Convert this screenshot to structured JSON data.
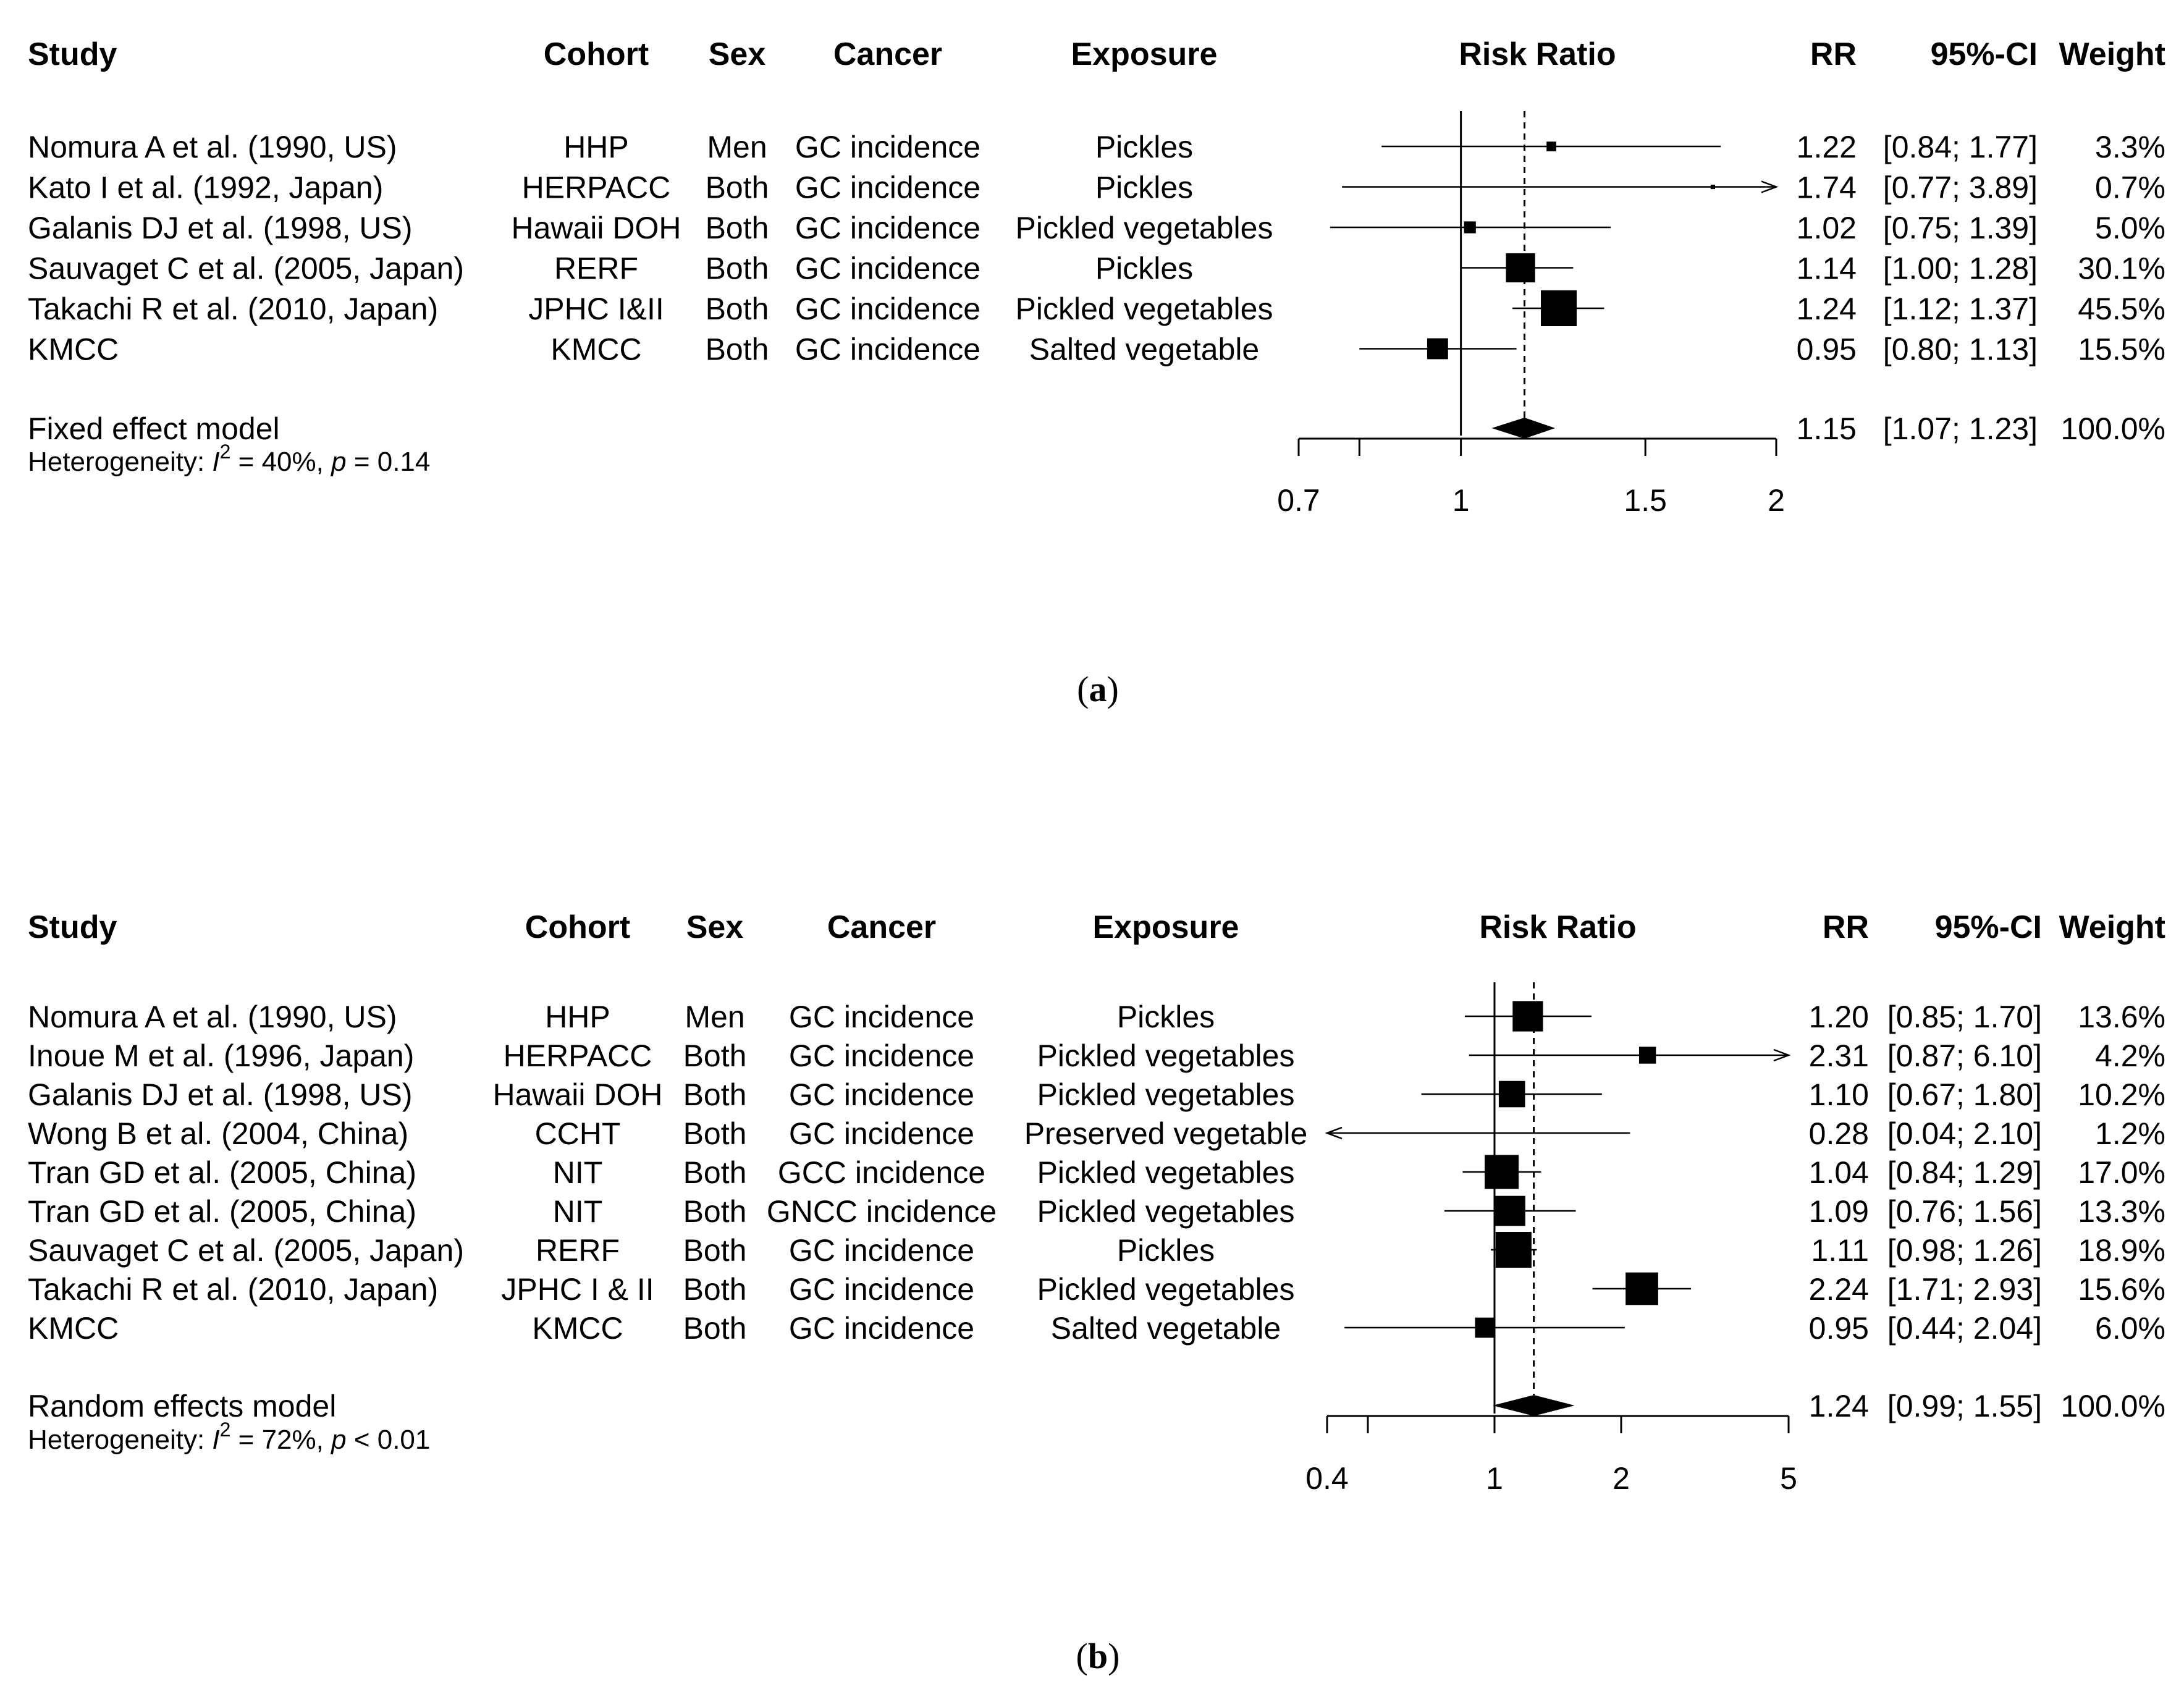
{
  "chart_data": [
    {
      "type": "forest",
      "panel_label": "a",
      "headers": {
        "study": "Study",
        "cohort": "Cohort",
        "sex": "Sex",
        "cancer": "Cancer",
        "exposure": "Exposure",
        "effect": "Risk Ratio",
        "rr": "RR",
        "ci": "95%-CI",
        "weight": "Weight"
      },
      "scale": "log",
      "xlim": [
        0.7,
        2
      ],
      "xticks": [
        0.7,
        0.8,
        1,
        1.5,
        2
      ],
      "xtick_labels": [
        "0.7",
        "",
        "1",
        "1.5",
        "2"
      ],
      "reference_line": 1,
      "studies": [
        {
          "study": "Nomura A et al. (1990, US)",
          "cohort": "HHP",
          "sex": "Men",
          "cancer": "GC incidence",
          "exposure": "Pickles",
          "rr": 1.22,
          "lower": 0.84,
          "upper": 1.77,
          "weight": 3.3,
          "rr_text": "1.22",
          "ci_text": "[0.84; 1.77]",
          "weight_text": "3.3%"
        },
        {
          "study": "Kato I et al. (1992, Japan)",
          "cohort": "HERPACC",
          "sex": "Both",
          "cancer": "GC incidence",
          "exposure": "Pickles",
          "rr": 1.74,
          "lower": 0.77,
          "upper": 3.89,
          "weight": 0.7,
          "rr_text": "1.74",
          "ci_text": "[0.77; 3.89]",
          "weight_text": "0.7%"
        },
        {
          "study": "Galanis DJ et al. (1998, US)",
          "cohort": "Hawaii DOH",
          "sex": "Both",
          "cancer": "GC incidence",
          "exposure": "Pickled vegetables",
          "rr": 1.02,
          "lower": 0.75,
          "upper": 1.39,
          "weight": 5.0,
          "rr_text": "1.02",
          "ci_text": "[0.75; 1.39]",
          "weight_text": "5.0%"
        },
        {
          "study": "Sauvaget C et al. (2005, Japan)",
          "cohort": "RERF",
          "sex": "Both",
          "cancer": "GC incidence",
          "exposure": "Pickles",
          "rr": 1.14,
          "lower": 1.0,
          "upper": 1.28,
          "weight": 30.1,
          "rr_text": "1.14",
          "ci_text": "[1.00; 1.28]",
          "weight_text": "30.1%"
        },
        {
          "study": "Takachi R et al. (2010, Japan)",
          "cohort": "JPHC I&II",
          "sex": "Both",
          "cancer": "GC incidence",
          "exposure": "Pickled vegetables",
          "rr": 1.24,
          "lower": 1.12,
          "upper": 1.37,
          "weight": 45.5,
          "rr_text": "1.24",
          "ci_text": "[1.12; 1.37]",
          "weight_text": "45.5%"
        },
        {
          "study": "KMCC",
          "cohort": "KMCC",
          "sex": "Both",
          "cancer": "GC incidence",
          "exposure": "Salted vegetable",
          "rr": 0.95,
          "lower": 0.8,
          "upper": 1.13,
          "weight": 15.5,
          "rr_text": "0.95",
          "ci_text": "[0.80; 1.13]",
          "weight_text": "15.5%"
        }
      ],
      "pooled": {
        "label": "Fixed effect model",
        "rr": 1.15,
        "lower": 1.07,
        "upper": 1.23,
        "rr_text": "1.15",
        "ci_text": "[1.07; 1.23]",
        "weight_text": "100.0%"
      },
      "heterogeneity": {
        "prefix": "Heterogeneity: ",
        "i_symbol": "I",
        "superscript": "2",
        "i2_text": " = 40%, ",
        "p_symbol": "p",
        "p_text": " = 0.14"
      }
    },
    {
      "type": "forest",
      "panel_label": "b",
      "headers": {
        "study": "Study",
        "cohort": "Cohort",
        "sex": "Sex",
        "cancer": "Cancer",
        "exposure": "Exposure",
        "effect": "Risk Ratio",
        "rr": "RR",
        "ci": "95%-CI",
        "weight": "Weight"
      },
      "scale": "log",
      "xlim": [
        0.4,
        5
      ],
      "xticks": [
        0.4,
        0.5,
        1,
        2,
        5
      ],
      "xtick_labels": [
        "0.4",
        "",
        "1",
        "2",
        "5"
      ],
      "reference_line": 1,
      "studies": [
        {
          "study": "Nomura A et al. (1990, US)",
          "cohort": "HHP",
          "sex": "Men",
          "cancer": "GC incidence",
          "exposure": "Pickles",
          "rr": 1.2,
          "lower": 0.85,
          "upper": 1.7,
          "weight": 13.6,
          "rr_text": "1.20",
          "ci_text": "[0.85; 1.70]",
          "weight_text": "13.6%"
        },
        {
          "study": "Inoue M et al. (1996, Japan)",
          "cohort": "HERPACC",
          "sex": "Both",
          "cancer": "GC incidence",
          "exposure": "Pickled vegetables",
          "rr": 2.31,
          "lower": 0.87,
          "upper": 6.1,
          "weight": 4.2,
          "rr_text": "2.31",
          "ci_text": "[0.87; 6.10]",
          "weight_text": "4.2%"
        },
        {
          "study": "Galanis DJ et al. (1998, US)",
          "cohort": "Hawaii DOH",
          "sex": "Both",
          "cancer": "GC incidence",
          "exposure": "Pickled vegetables",
          "rr": 1.1,
          "lower": 0.67,
          "upper": 1.8,
          "weight": 10.2,
          "rr_text": "1.10",
          "ci_text": "[0.67; 1.80]",
          "weight_text": "10.2%"
        },
        {
          "study": "Wong B et al. (2004, China)",
          "cohort": "CCHT",
          "sex": "Both",
          "cancer": "GC incidence",
          "exposure": "Preserved vegetable",
          "rr": 0.28,
          "lower": 0.04,
          "upper": 2.1,
          "weight": 1.2,
          "rr_text": "0.28",
          "ci_text": "[0.04; 2.10]",
          "weight_text": "1.2%"
        },
        {
          "study": "Tran GD et al. (2005, China)",
          "cohort": "NIT",
          "sex": "Both",
          "cancer": "GCC incidence",
          "exposure": "Pickled vegetables",
          "rr": 1.04,
          "lower": 0.84,
          "upper": 1.29,
          "weight": 17.0,
          "rr_text": "1.04",
          "ci_text": "[0.84; 1.29]",
          "weight_text": "17.0%"
        },
        {
          "study": "Tran GD et al. (2005, China)",
          "cohort": "NIT",
          "sex": "Both",
          "cancer": "GNCC incidence",
          "exposure": "Pickled vegetables",
          "rr": 1.09,
          "lower": 0.76,
          "upper": 1.56,
          "weight": 13.3,
          "rr_text": "1.09",
          "ci_text": "[0.76; 1.56]",
          "weight_text": "13.3%"
        },
        {
          "study": "Sauvaget C et al. (2005, Japan)",
          "cohort": "RERF",
          "sex": "Both",
          "cancer": "GC incidence",
          "exposure": "Pickles",
          "rr": 1.11,
          "lower": 0.98,
          "upper": 1.26,
          "weight": 18.9,
          "rr_text": "1.11",
          "ci_text": "[0.98; 1.26]",
          "weight_text": "18.9%"
        },
        {
          "study": "Takachi R et al. (2010, Japan)",
          "cohort": "JPHC I & II",
          "sex": "Both",
          "cancer": "GC incidence",
          "exposure": "Pickled vegetables",
          "rr": 2.24,
          "lower": 1.71,
          "upper": 2.93,
          "weight": 15.6,
          "rr_text": "2.24",
          "ci_text": "[1.71; 2.93]",
          "weight_text": "15.6%"
        },
        {
          "study": "KMCC",
          "cohort": "KMCC",
          "sex": "Both",
          "cancer": "GC incidence",
          "exposure": "Salted vegetable",
          "rr": 0.95,
          "lower": 0.44,
          "upper": 2.04,
          "weight": 6.0,
          "rr_text": "0.95",
          "ci_text": "[0.44; 2.04]",
          "weight_text": "6.0%"
        }
      ],
      "pooled": {
        "label": "Random effects model",
        "rr": 1.24,
        "lower": 0.99,
        "upper": 1.55,
        "rr_text": "1.24",
        "ci_text": "[0.99; 1.55]",
        "weight_text": "100.0%"
      },
      "heterogeneity": {
        "prefix": "Heterogeneity: ",
        "i_symbol": "I",
        "superscript": "2",
        "i2_text": " = 72%, ",
        "p_symbol": "p",
        "p_text": " < 0.01"
      }
    }
  ]
}
